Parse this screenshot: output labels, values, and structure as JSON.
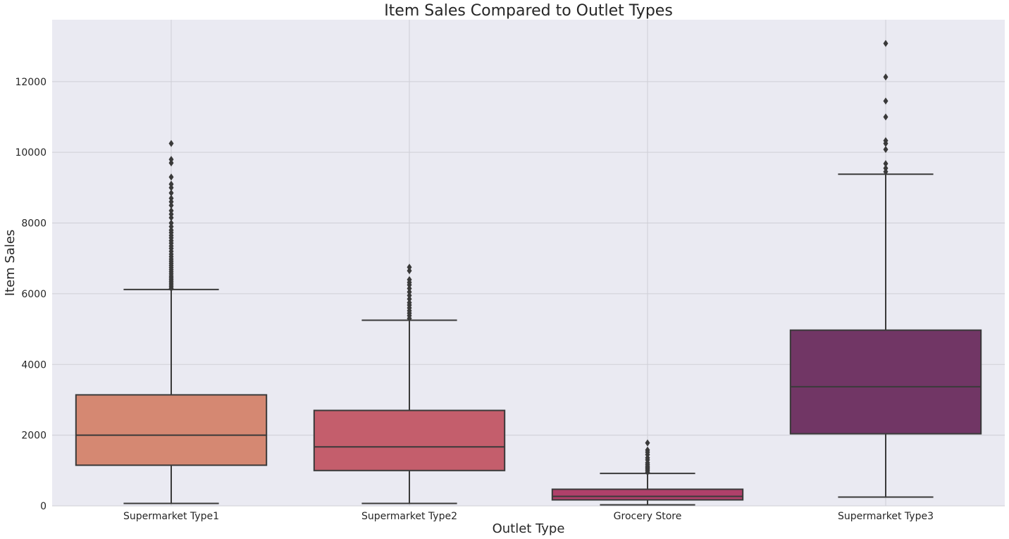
{
  "chart_data": {
    "type": "boxplot",
    "title": "Item Sales Compared to Outlet Types",
    "xlabel": "Outlet Type",
    "ylabel": "Item Sales",
    "ylim": [
      0,
      13750
    ],
    "yticks": [
      0,
      2000,
      4000,
      6000,
      8000,
      10000,
      12000
    ],
    "grid": true,
    "categories": [
      "Supermarket Type1",
      "Supermarket Type2",
      "Grocery Store",
      "Supermarket Type3"
    ],
    "boxes": [
      {
        "category": "Supermarket Type1",
        "color": "#d58872",
        "whisker_low": 70,
        "q1": 1150,
        "median": 2000,
        "q3": 3140,
        "whisker_high": 6120,
        "outliers": [
          6150,
          6200,
          6250,
          6300,
          6350,
          6400,
          6450,
          6500,
          6560,
          6620,
          6680,
          6740,
          6800,
          6860,
          6920,
          6980,
          7050,
          7120,
          7200,
          7280,
          7350,
          7430,
          7500,
          7580,
          7650,
          7730,
          7800,
          7900,
          8000,
          8150,
          8250,
          8350,
          8500,
          8600,
          8700,
          8850,
          9000,
          9100,
          9300,
          9700,
          9800,
          10250
        ]
      },
      {
        "category": "Supermarket Type2",
        "color": "#c45e6c",
        "whisker_low": 70,
        "q1": 1000,
        "median": 1670,
        "q3": 2700,
        "whisker_high": 5250,
        "outliers": [
          5300,
          5380,
          5450,
          5520,
          5600,
          5680,
          5750,
          5850,
          5950,
          6050,
          6150,
          6250,
          6320,
          6400,
          6650,
          6750
        ]
      },
      {
        "category": "Grocery Store",
        "color": "#b0406a",
        "whisker_low": 30,
        "q1": 170,
        "median": 270,
        "q3": 470,
        "whisker_high": 920,
        "outliers": [
          950,
          1000,
          1040,
          1080,
          1120,
          1170,
          1220,
          1300,
          1360,
          1450,
          1520,
          1580,
          1780
        ]
      },
      {
        "category": "Supermarket Type3",
        "color": "#713665",
        "whisker_low": 250,
        "q1": 2040,
        "median": 3370,
        "q3": 4970,
        "whisker_high": 9380,
        "outliers": [
          9450,
          9550,
          9680,
          10080,
          10250,
          10330,
          11000,
          11450,
          12130,
          13080
        ]
      }
    ]
  }
}
